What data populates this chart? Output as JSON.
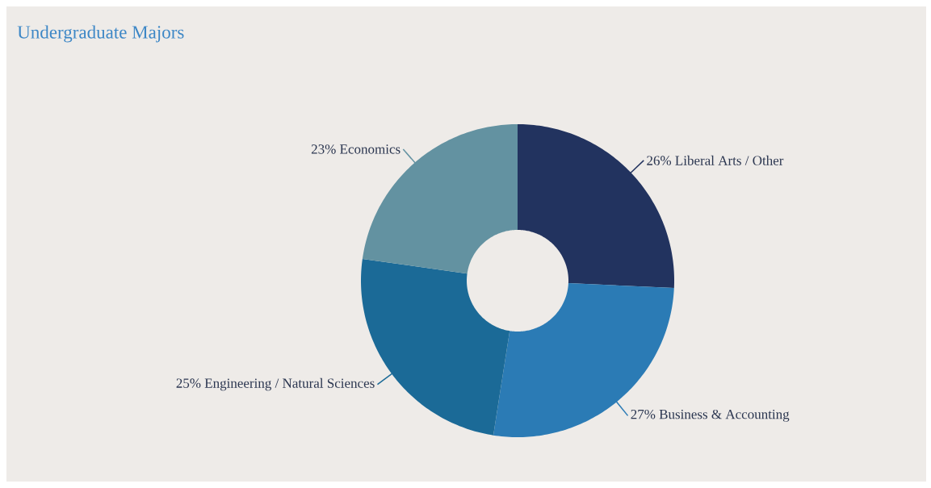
{
  "chart_data": {
    "type": "donut",
    "title": "Undergraduate Majors",
    "categories": [
      "Liberal Arts / Other",
      "Business & Accounting",
      "Engineering / Natural Sciences",
      "Economics"
    ],
    "values": [
      26,
      27,
      25,
      23
    ],
    "value_labels": [
      "26%",
      "27%",
      "25%",
      "23%"
    ],
    "colors": [
      "#22335f",
      "#2b7bb5",
      "#1b6a97",
      "#6392a1"
    ]
  }
}
